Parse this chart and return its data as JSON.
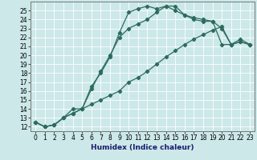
{
  "title": "",
  "xlabel": "Humidex (Indice chaleur)",
  "bg_color": "#cce8e8",
  "grid_color": "#ffffff",
  "line_color": "#2d6b5e",
  "xlim": [
    -0.5,
    23.5
  ],
  "ylim": [
    11.5,
    26.0
  ],
  "xticks": [
    0,
    1,
    2,
    3,
    4,
    5,
    6,
    7,
    8,
    9,
    10,
    11,
    12,
    13,
    14,
    15,
    16,
    17,
    18,
    19,
    20,
    21,
    22,
    23
  ],
  "yticks": [
    12,
    13,
    14,
    15,
    16,
    17,
    18,
    19,
    20,
    21,
    22,
    23,
    24,
    25
  ],
  "line1_x": [
    0,
    1,
    2,
    3,
    4,
    5,
    6,
    7,
    8,
    9,
    10,
    11,
    12,
    13,
    14,
    15,
    16,
    17,
    18,
    19,
    20,
    21,
    22,
    23
  ],
  "line1_y": [
    12.5,
    12.0,
    12.2,
    13.0,
    13.5,
    14.0,
    14.5,
    15.0,
    15.5,
    16.0,
    17.0,
    17.5,
    18.2,
    19.0,
    19.8,
    20.5,
    21.2,
    21.8,
    22.3,
    22.8,
    23.2,
    21.2,
    21.8,
    21.2
  ],
  "line2_x": [
    0,
    1,
    2,
    3,
    4,
    5,
    6,
    7,
    8,
    9,
    10,
    11,
    12,
    13,
    14,
    15,
    16,
    17,
    18,
    19,
    20,
    21,
    22,
    23
  ],
  "line2_y": [
    12.5,
    12.0,
    12.2,
    13.0,
    13.5,
    14.0,
    16.5,
    18.0,
    19.8,
    22.5,
    24.8,
    25.2,
    25.5,
    25.2,
    25.5,
    25.0,
    24.5,
    24.0,
    23.8,
    23.8,
    21.2,
    21.2,
    21.5,
    21.2
  ],
  "line3_x": [
    0,
    1,
    2,
    3,
    4,
    5,
    6,
    7,
    8,
    9,
    10,
    11,
    12,
    13,
    14,
    15,
    16,
    17,
    18,
    19,
    20,
    21,
    22,
    23
  ],
  "line3_y": [
    12.5,
    12.0,
    12.2,
    13.0,
    14.0,
    14.0,
    16.2,
    18.2,
    20.0,
    22.0,
    23.0,
    23.5,
    24.0,
    24.8,
    25.5,
    25.5,
    24.5,
    24.2,
    24.0,
    23.8,
    23.0,
    21.2,
    21.5,
    21.2
  ]
}
